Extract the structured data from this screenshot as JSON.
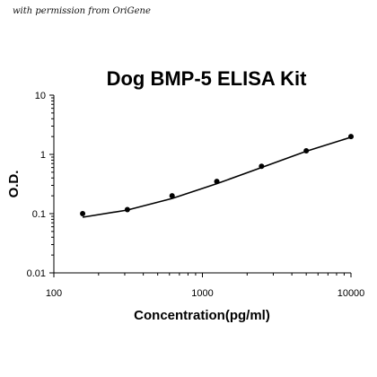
{
  "watermark": "with permission from OriGene",
  "chart_data": {
    "type": "scatter",
    "title": "Dog BMP-5 ELISA Kit",
    "xlabel": "Concentration(pg/ml)",
    "ylabel": "O.D.",
    "x_scale": "log",
    "y_scale": "log",
    "xlim": [
      100,
      10000
    ],
    "ylim": [
      0.01,
      10
    ],
    "x_ticks": [
      "100",
      "1000",
      "10000"
    ],
    "y_ticks": [
      "0.01",
      "0.1",
      "1",
      "10"
    ],
    "grid": false,
    "legend": "none",
    "colors": {
      "points": "#000000",
      "curve": "#000000",
      "axes": "#000000"
    },
    "points": {
      "x": [
        156.25,
        312.5,
        625,
        1250,
        2500,
        5000,
        10000
      ],
      "y": [
        0.1,
        0.117,
        0.2,
        0.35,
        0.63,
        1.15,
        2.0
      ]
    },
    "fit_curve": {
      "x": [
        156.25,
        312.5,
        625,
        1250,
        2500,
        5000,
        10000
      ],
      "y": [
        0.087,
        0.115,
        0.18,
        0.32,
        0.6,
        1.13,
        1.95
      ]
    }
  }
}
